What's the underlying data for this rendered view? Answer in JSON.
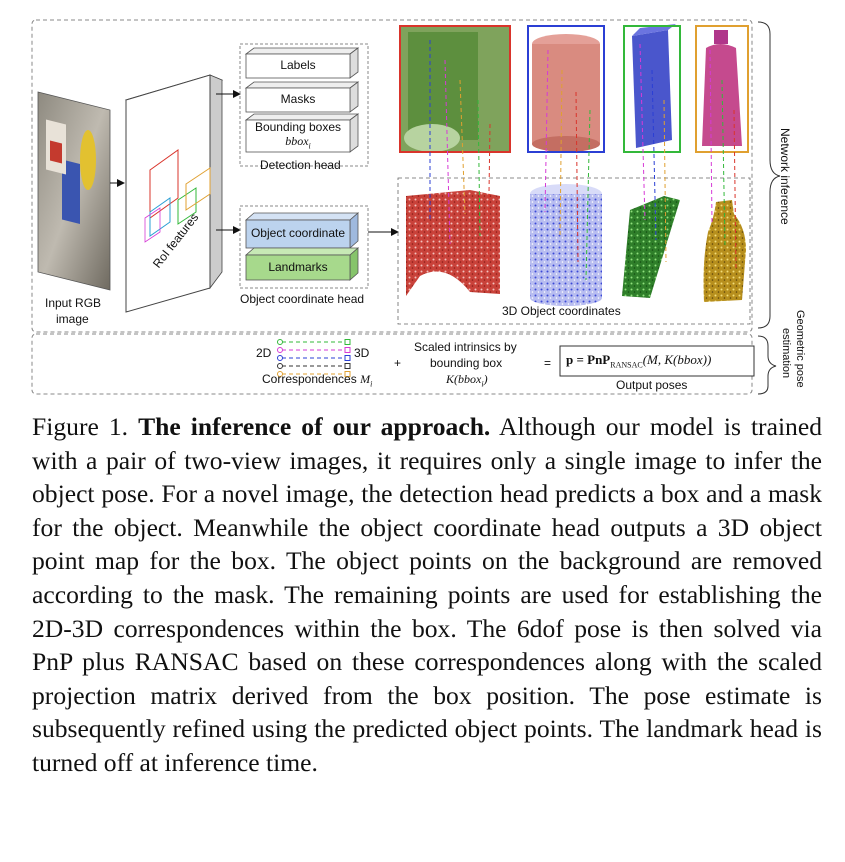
{
  "diagram": {
    "input_label_line1": "Input RGB",
    "input_label_line2": "image",
    "roi_label": "RoI features",
    "detection_head": {
      "labels": "Labels",
      "masks": "Masks",
      "bboxes": "Bounding boxes",
      "bbox_math": "bbox",
      "bbox_sub": "i",
      "title": "Detection head"
    },
    "coord_head": {
      "object_coordinate": "Object coordinate",
      "landmarks": "Landmarks",
      "title": "Object coordinate head"
    },
    "coords_3d_label": "3D Object coordinates",
    "side_labels": {
      "network_inference": "Network inference",
      "geometric_line1": "Geometric pose",
      "geometric_line2": "estimation"
    },
    "bottom": {
      "label_2d": "2D",
      "label_3d": "3D",
      "correspondences": "Correspondences",
      "corr_math": "M",
      "corr_sub": "i",
      "plus": "+",
      "scaled_line1": "Scaled intrinsics by",
      "scaled_line2": "bounding box",
      "scaled_math": "K(bbox",
      "scaled_math_end": ")",
      "equals": "=",
      "formula": "p = PnP",
      "formula_sub": "RANSAC",
      "formula_args": "(M, K(bbox))",
      "output_label": "Output poses"
    },
    "colors": {
      "red": "#d9342b",
      "blue": "#2b3fd4",
      "green": "#33b83a",
      "orange": "#e0a030",
      "magenta": "#d63ad6",
      "light_blue_box": "#bcd3ee",
      "light_green_box": "#a7d98c"
    }
  },
  "caption": {
    "prefix": "Figure 1.",
    "title": "The inference of our approach.",
    "body": "Although our model is trained with a pair of two-view images, it requires only a single image to infer the object pose. For a novel image, the detection head predicts a box and a mask for the object. Meanwhile the object coordinate head outputs a 3D object point map for the box. The object points on the background are removed according to the mask. The remaining points are used for establishing the 2D-3D correspondences within the box. The 6dof pose is then solved via PnP plus RANSAC based on these correspondences along with the scaled projection matrix derived from the box position. The pose estimate is subsequently refined using the predicted object points. The landmark head is turned off at inference time."
  }
}
